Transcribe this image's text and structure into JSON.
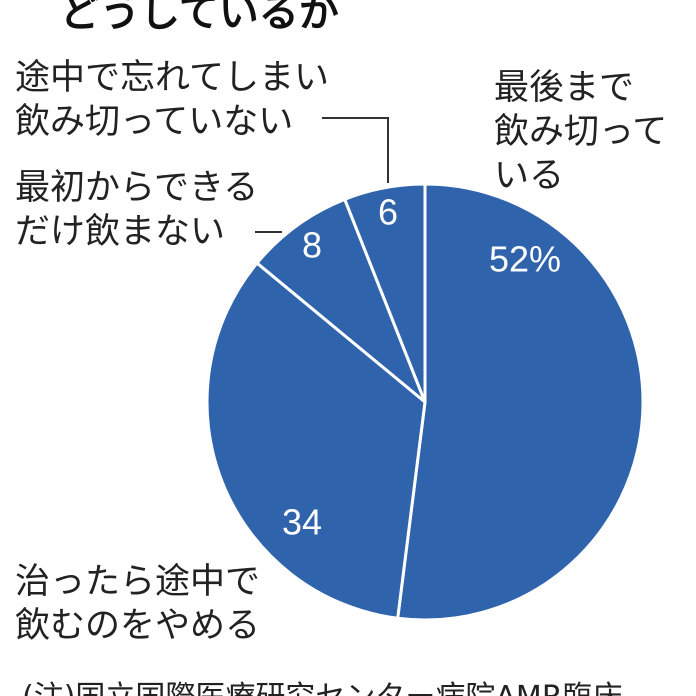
{
  "chart_data": {
    "type": "pie",
    "title": "どうしているか",
    "categories": [
      "最後まで\n飲み切って\nいる",
      "治ったら途中で\n飲むのをやめる",
      "最初からできる\nだけ飲まない",
      "途中で忘れてしまい\n飲み切っていない"
    ],
    "values": [
      52,
      34,
      8,
      6
    ],
    "value_labels": [
      "52%",
      "34",
      "8",
      "6"
    ],
    "color": "#2f63ac",
    "note": "(注)国立国際医療研究センター病院AMR臨床"
  }
}
